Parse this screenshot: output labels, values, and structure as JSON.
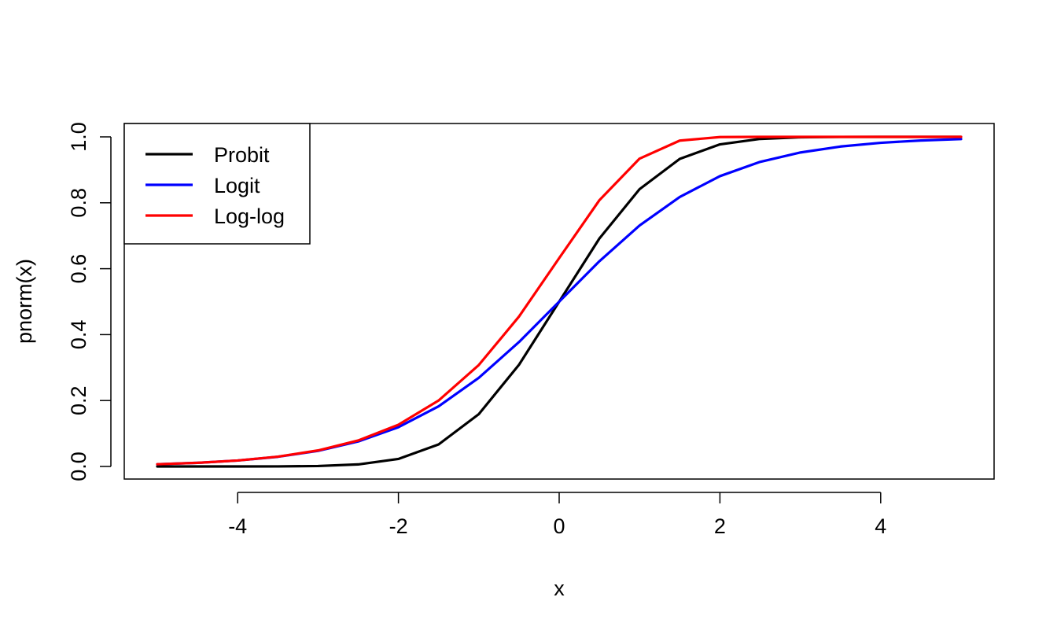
{
  "chart_data": {
    "type": "line",
    "title": "",
    "xlabel": "x",
    "ylabel": "pnorm(x)",
    "xlim": [
      -5,
      5
    ],
    "ylim": [
      0,
      1
    ],
    "x_ticks": [
      -4,
      -2,
      0,
      2,
      4
    ],
    "x_tick_labels": [
      "-4",
      "-2",
      "0",
      "2",
      "4"
    ],
    "y_ticks": [
      0.0,
      0.2,
      0.4,
      0.6,
      0.8,
      1.0
    ],
    "y_tick_labels": [
      "0.0",
      "0.2",
      "0.4",
      "0.6",
      "0.8",
      "1.0"
    ],
    "grid": false,
    "legend": {
      "position": "top-left"
    },
    "x": [
      -5,
      -4.5,
      -4,
      -3.5,
      -3,
      -2.5,
      -2,
      -1.5,
      -1,
      -0.5,
      0,
      0.5,
      1,
      1.5,
      2,
      2.5,
      3,
      3.5,
      4,
      4.5,
      5
    ],
    "series": [
      {
        "name": "Probit",
        "color": "#000000",
        "values": [
          0.0,
          0.0,
          0.0,
          0.0002,
          0.0013,
          0.0062,
          0.0228,
          0.0668,
          0.1587,
          0.3085,
          0.5,
          0.6915,
          0.8413,
          0.9332,
          0.9772,
          0.9938,
          0.9987,
          0.9998,
          1.0,
          1.0,
          1.0
        ]
      },
      {
        "name": "Logit",
        "color": "#0000ff",
        "values": [
          0.0067,
          0.011,
          0.018,
          0.0293,
          0.0474,
          0.0759,
          0.1192,
          0.1824,
          0.2689,
          0.3775,
          0.5,
          0.6225,
          0.7311,
          0.8176,
          0.8808,
          0.9241,
          0.9526,
          0.9707,
          0.982,
          0.989,
          0.9933
        ]
      },
      {
        "name": "Log-log",
        "color": "#ff0000",
        "values": [
          0.0067,
          0.011,
          0.0181,
          0.0297,
          0.0486,
          0.0788,
          0.1266,
          0.2001,
          0.3078,
          0.4548,
          0.6321,
          0.8077,
          0.934,
          0.9887,
          0.9994,
          1.0,
          1.0,
          1.0,
          1.0,
          1.0,
          1.0
        ]
      }
    ]
  }
}
